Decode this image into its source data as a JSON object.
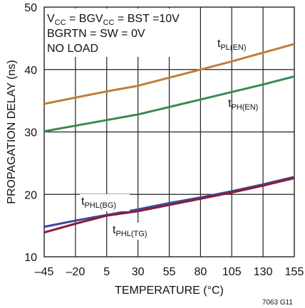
{
  "chart_data": {
    "type": "line",
    "title": "",
    "xlabel": "TEMPERATURE (°C)",
    "ylabel": "PROPAGATION DELAY (ns)",
    "x_ticks": [
      -45,
      -20,
      5,
      30,
      55,
      80,
      105,
      130,
      155
    ],
    "x_tick_labels": [
      "–45",
      "–20",
      "5",
      "30",
      "55",
      "80",
      "105",
      "130",
      "155"
    ],
    "y_ticks": [
      10,
      20,
      30,
      40,
      50
    ],
    "xlim": [
      -45,
      155
    ],
    "ylim": [
      10,
      50
    ],
    "grid": true,
    "series": [
      {
        "name": "tPL(EN)",
        "label_main": "t",
        "label_sub": "PL(EN)",
        "color": "#c07d3c",
        "x": [
          -45,
          -20,
          5,
          30,
          55,
          80,
          105,
          130,
          155
        ],
        "y": [
          34.5,
          35.5,
          36.5,
          37.4,
          38.7,
          40.0,
          41.3,
          42.7,
          44.1
        ]
      },
      {
        "name": "tPH(EN)",
        "label_main": "t",
        "label_sub": "PH(EN)",
        "color": "#3a8a4f",
        "x": [
          -45,
          -20,
          5,
          30,
          55,
          80,
          105,
          130,
          155
        ],
        "y": [
          30.1,
          31.0,
          31.9,
          32.8,
          34.0,
          35.2,
          36.4,
          37.6,
          38.9
        ]
      },
      {
        "name": "tPHL(BG)",
        "label_main": "t",
        "label_sub": "PHL(BG)",
        "color": "#3d4a9a",
        "x": [
          -45,
          -20,
          5,
          30,
          55,
          80,
          105,
          130,
          155
        ],
        "y": [
          14.8,
          15.8,
          16.7,
          17.6,
          18.6,
          19.5,
          20.5,
          21.6,
          22.8
        ]
      },
      {
        "name": "tPHL(TG)",
        "label_main": "t",
        "label_sub": "PHL(TG)",
        "color": "#8a1c3c",
        "x": [
          -45,
          -20,
          5,
          30,
          55,
          80,
          105,
          130,
          155
        ],
        "y": [
          13.9,
          15.3,
          16.6,
          17.3,
          18.3,
          19.3,
          20.3,
          21.4,
          22.6
        ]
      }
    ],
    "conditions": [
      {
        "parts": [
          [
            "V",
            ""
          ],
          [
            "CC",
            "sub"
          ],
          [
            " = BGV",
            ""
          ],
          [
            "CC",
            "sub"
          ],
          [
            " = BST =10V",
            ""
          ]
        ]
      },
      {
        "parts": [
          [
            "BGRTN = SW = 0V",
            ""
          ]
        ]
      },
      {
        "parts": [
          [
            "NO LOAD",
            ""
          ]
        ]
      }
    ],
    "figure_code": "7063  G11"
  }
}
